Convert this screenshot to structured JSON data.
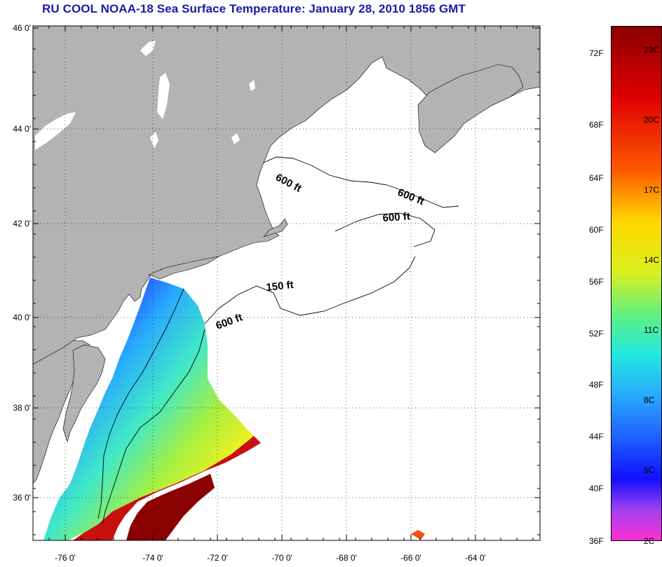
{
  "title": "RU COOL  NOAA-18  Sea Surface Temperature:  January 28, 2010 1856 GMT",
  "lat_ticks": [
    "46 0'",
    "44 0'",
    "42 0'",
    "40 0'",
    "38 0'",
    "36 0'"
  ],
  "lon_ticks": [
    "-76 0'",
    "-74 0'",
    "-72 0'",
    "-70 0'",
    "-68 0'",
    "-66 0'",
    "-64 0'"
  ],
  "contours": [
    "600 ft",
    "600 ft",
    "600 ft",
    "150 ft",
    "600 ft"
  ],
  "colorbar": {
    "fahrenheit": [
      "72F",
      "68F",
      "64F",
      "60F",
      "56F",
      "52F",
      "48F",
      "44F",
      "40F",
      "36F"
    ],
    "celsius": [
      "23C",
      "20C",
      "17C",
      "14C",
      "11C",
      "8C",
      "5C",
      "2C"
    ]
  },
  "colors": {
    "land": "#b3b3b3",
    "title": "#1a1aa8",
    "ocean_no_data": "#ffffff"
  }
}
